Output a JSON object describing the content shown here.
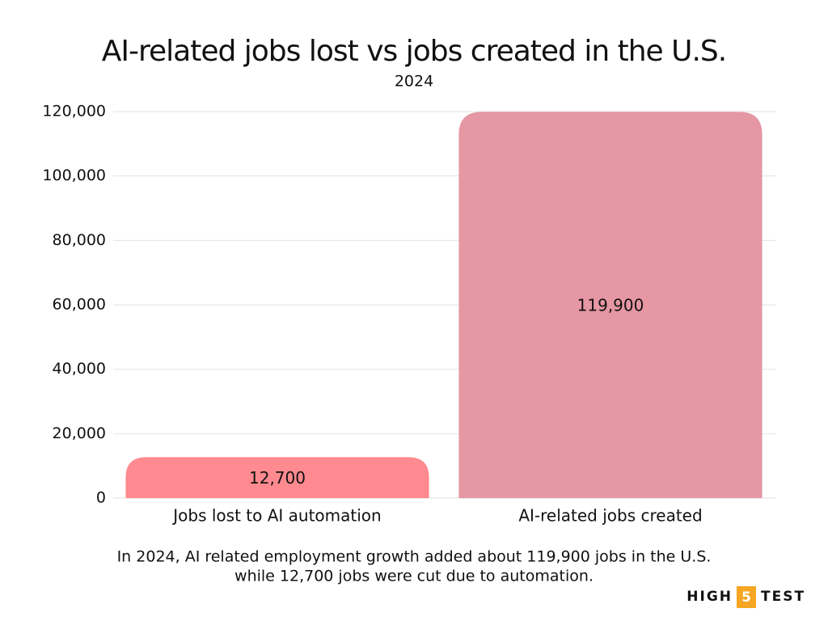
{
  "chart_data": {
    "type": "bar",
    "title": "AI-related jobs lost vs jobs created in the U.S.",
    "subtitle": "2024",
    "categories": [
      "Jobs lost to AI automation",
      "AI-related jobs created"
    ],
    "values": [
      12700,
      119900
    ],
    "value_labels": [
      "12,700",
      "119,900"
    ],
    "colors": [
      "#ff8a8f",
      "#e597a3"
    ],
    "ylim": [
      0,
      120000
    ],
    "yticks": [
      0,
      {
        "value": 20000,
        "label": "20,000"
      },
      {
        "value": 40000,
        "label": "40,000"
      },
      {
        "value": 60000,
        "label": "60,000"
      },
      {
        "value": 80000,
        "label": "80,000"
      },
      {
        "value": 100000,
        "label": "100,000"
      },
      {
        "value": 120000,
        "label": "120,000"
      }
    ],
    "grid": true,
    "footnote": [
      "In 2024, AI related employment growth added about 119,900 jobs in the U.S.",
      "while 12,700 jobs were cut due to automation."
    ]
  },
  "logo": {
    "left": "HIGH",
    "badge": "5",
    "right": "TEST"
  }
}
